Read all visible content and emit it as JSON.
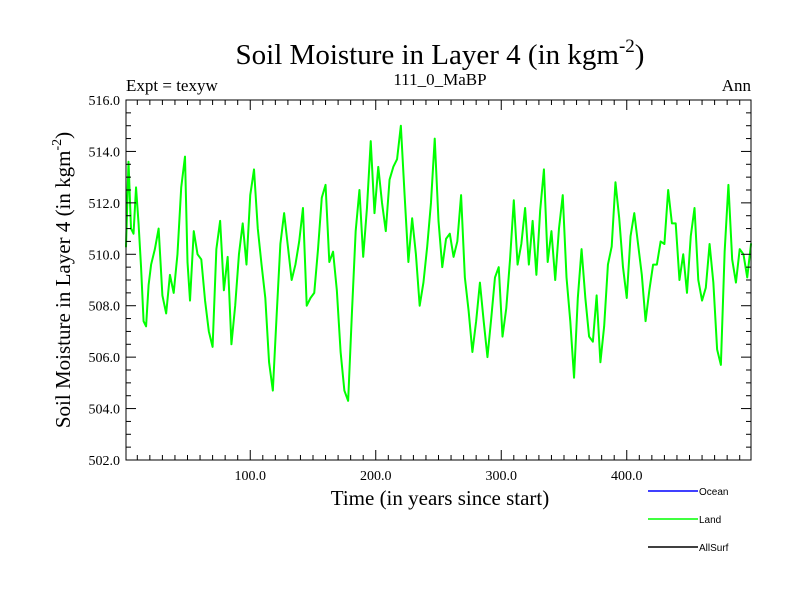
{
  "chart_data": {
    "type": "line",
    "title": "Soil Moisture in Layer 4 (in kgm",
    "title_sup": "-2",
    "title_end": ")",
    "subtitle_left": "Expt = texyw",
    "subtitle_center": "111_0_MaBP",
    "subtitle_right": "Ann",
    "xlabel": "Time (in years since start)",
    "ylabel": "Soil Moisture in Layer 4 (in kgm",
    "ylabel_sup": "-2",
    "ylabel_end": ")",
    "xlim": [
      1,
      499
    ],
    "ylim": [
      502.0,
      516.0
    ],
    "x_ticks": [
      100,
      200,
      300,
      400
    ],
    "x_tick_labels": [
      "100.0",
      "200.0",
      "300.0",
      "400.0"
    ],
    "y_ticks": [
      502,
      504,
      506,
      508,
      510,
      512,
      514,
      516
    ],
    "y_tick_labels": [
      "502.0",
      "504.0",
      "506.0",
      "508.0",
      "510.0",
      "512.0",
      "514.0",
      "516.0"
    ],
    "grid": false,
    "legend_position": "bottom-right, outside plot",
    "legend": [
      {
        "name": "Ocean",
        "color": "#0000ff"
      },
      {
        "name": "Land",
        "color": "#00ff00"
      },
      {
        "name": "AllSurf",
        "color": "#000000"
      }
    ],
    "series": [
      {
        "name": "Land",
        "color": "#00ff00",
        "x": [
          1,
          3,
          5,
          7,
          9,
          11,
          13,
          15,
          17,
          19,
          21,
          24,
          27,
          30,
          33,
          36,
          39,
          42,
          45,
          48,
          50,
          52,
          55,
          58,
          61,
          64,
          67,
          70,
          73,
          76,
          79,
          82,
          85,
          88,
          91,
          94,
          97,
          100,
          103,
          106,
          109,
          112,
          115,
          118,
          121,
          124,
          127,
          130,
          133,
          136,
          139,
          142,
          145,
          148,
          151,
          154,
          157,
          160,
          163,
          166,
          169,
          172,
          175,
          178,
          181,
          184,
          187,
          190,
          193,
          196,
          199,
          202,
          205,
          208,
          211,
          214,
          217,
          220,
          223,
          226,
          229,
          232,
          235,
          238,
          241,
          244,
          247,
          250,
          253,
          256,
          259,
          262,
          265,
          268,
          271,
          274,
          277,
          280,
          283,
          286,
          289,
          292,
          295,
          298,
          301,
          304,
          307,
          310,
          313,
          316,
          319,
          322,
          325,
          328,
          331,
          334,
          337,
          340,
          343,
          346,
          349,
          352,
          355,
          358,
          361,
          364,
          367,
          370,
          373,
          376,
          379,
          382,
          385,
          388,
          391,
          394,
          397,
          400,
          403,
          406,
          409,
          412,
          415,
          418,
          421,
          424,
          427,
          430,
          433,
          436,
          439,
          442,
          445,
          448,
          451,
          454,
          457,
          460,
          463,
          466,
          469,
          472,
          475,
          478,
          481,
          484,
          487,
          490,
          493,
          496,
          499
        ],
        "y": [
          510.3,
          513.6,
          511.0,
          510.8,
          512.6,
          511.2,
          509.5,
          507.4,
          507.2,
          508.8,
          509.6,
          510.2,
          511.0,
          508.4,
          507.7,
          509.2,
          508.5,
          510.0,
          512.6,
          513.8,
          509.7,
          508.2,
          510.9,
          510.0,
          509.8,
          508.2,
          507.0,
          506.4,
          510.2,
          511.3,
          508.6,
          509.9,
          506.5,
          508.0,
          510.0,
          511.2,
          509.6,
          512.3,
          513.3,
          511.0,
          509.6,
          508.3,
          505.8,
          504.7,
          507.6,
          510.4,
          511.6,
          510.3,
          509.0,
          509.6,
          510.5,
          511.8,
          508.0,
          508.3,
          508.5,
          510.2,
          512.2,
          512.7,
          509.7,
          510.1,
          508.6,
          506.2,
          504.7,
          504.3,
          507.7,
          510.9,
          512.5,
          509.9,
          511.8,
          514.4,
          511.6,
          513.4,
          512.0,
          510.9,
          512.9,
          513.4,
          513.7,
          515.0,
          512.3,
          509.7,
          511.4,
          510.0,
          508.0,
          508.9,
          510.3,
          512.0,
          514.5,
          511.3,
          509.5,
          510.6,
          510.8,
          509.9,
          510.5,
          512.3,
          509.1,
          507.8,
          506.2,
          507.4,
          508.9,
          507.4,
          506.0,
          507.5,
          509.1,
          509.5,
          506.8,
          507.9,
          509.8,
          512.1,
          509.6,
          510.4,
          511.8,
          509.6,
          511.3,
          509.2,
          511.7,
          513.3,
          509.7,
          510.9,
          509.0,
          511.0,
          512.3,
          509.1,
          507.4,
          505.2,
          508.3,
          510.2,
          508.3,
          506.8,
          506.6,
          508.4,
          505.8,
          507.2,
          509.6,
          510.3,
          512.8,
          511.4,
          509.5,
          508.3,
          510.7,
          511.6,
          510.4,
          509.2,
          507.4,
          508.6,
          509.6,
          509.6,
          510.5,
          510.4,
          512.5,
          511.2,
          511.2,
          509.0,
          510.0,
          508.5,
          510.7,
          511.8,
          509.0,
          508.2,
          508.7,
          510.4,
          508.9,
          506.3,
          505.7,
          510.1,
          512.7,
          509.8,
          508.9,
          510.2,
          510.0,
          509.1,
          510.4
        ]
      }
    ]
  }
}
